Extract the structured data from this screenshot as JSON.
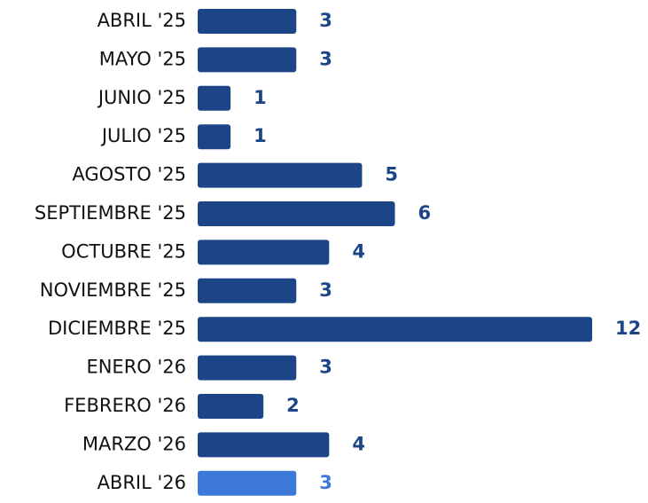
{
  "chart_data": {
    "type": "bar",
    "categories": [
      "ABRIL '25",
      "MAYO '25",
      "JUNIO '25",
      "JULIO '25",
      "AGOSTO '25",
      "SEPTIEMBRE '25",
      "OCTUBRE '25",
      "NOVIEMBRE '25",
      "DICIEMBRE '25",
      "ENERO '26",
      "FEBRERO '26",
      "MARZO '26",
      "ABRIL '26"
    ],
    "values": [
      3,
      3,
      1,
      1,
      5,
      6,
      4,
      3,
      12,
      3,
      2,
      4,
      3
    ],
    "colors": [
      "#1c4587",
      "#1c4587",
      "#1c4587",
      "#1c4587",
      "#1c4587",
      "#1c4587",
      "#1c4587",
      "#1c4587",
      "#1c4587",
      "#1c4587",
      "#1c4587",
      "#1c4587",
      "#3c78d8"
    ]
  }
}
